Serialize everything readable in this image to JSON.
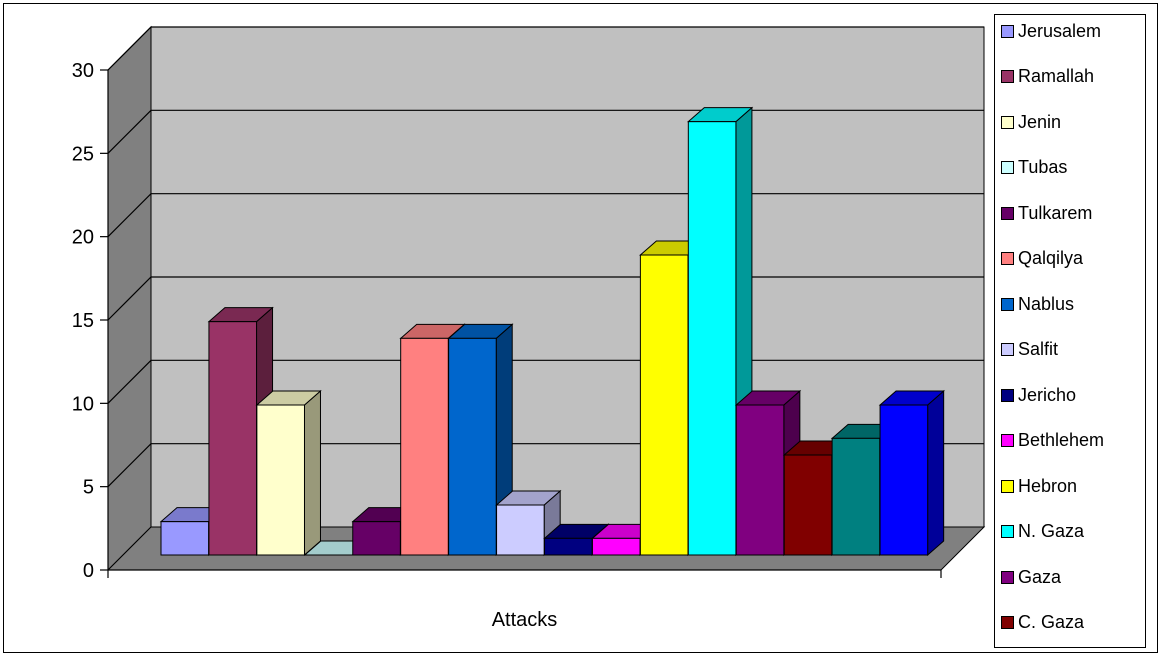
{
  "chart_data": {
    "type": "bar",
    "categories": [
      "Attacks"
    ],
    "series": [
      {
        "name": "Jerusalem",
        "values": [
          2
        ],
        "color": "#9999FF"
      },
      {
        "name": "Ramallah",
        "values": [
          14
        ],
        "color": "#993366"
      },
      {
        "name": "Jenin",
        "values": [
          9
        ],
        "color": "#FFFFCC"
      },
      {
        "name": "Tubas",
        "values": [
          0
        ],
        "color": "#CCFFFF"
      },
      {
        "name": "Tulkarem",
        "values": [
          2
        ],
        "color": "#660066"
      },
      {
        "name": "Qalqilya",
        "values": [
          13
        ],
        "color": "#FF8080"
      },
      {
        "name": "Nablus",
        "values": [
          13
        ],
        "color": "#0066CC"
      },
      {
        "name": "Salfit",
        "values": [
          3
        ],
        "color": "#CCCCFF"
      },
      {
        "name": "Jericho",
        "values": [
          1
        ],
        "color": "#000080"
      },
      {
        "name": "Bethlehem",
        "values": [
          1
        ],
        "color": "#FF00FF"
      },
      {
        "name": "Hebron",
        "values": [
          18
        ],
        "color": "#FFFF00"
      },
      {
        "name": "N. Gaza",
        "values": [
          26
        ],
        "color": "#00FFFF"
      },
      {
        "name": "Gaza",
        "values": [
          9
        ],
        "color": "#800080"
      },
      {
        "name": "C. Gaza",
        "values": [
          6
        ],
        "color": "#800000"
      },
      {
        "name": "",
        "values": [
          7
        ],
        "color": "#008080"
      },
      {
        "name": "",
        "values": [
          9
        ],
        "color": "#0000FF"
      }
    ],
    "yticks": [
      "0",
      "5",
      "10",
      "15",
      "20",
      "25",
      "30"
    ],
    "ylim": [
      0,
      30
    ],
    "grid": true,
    "legend_position": "right",
    "wall_color": "#C0C0C0",
    "side_wall_color": "#808080",
    "floor_color": "#808080"
  }
}
